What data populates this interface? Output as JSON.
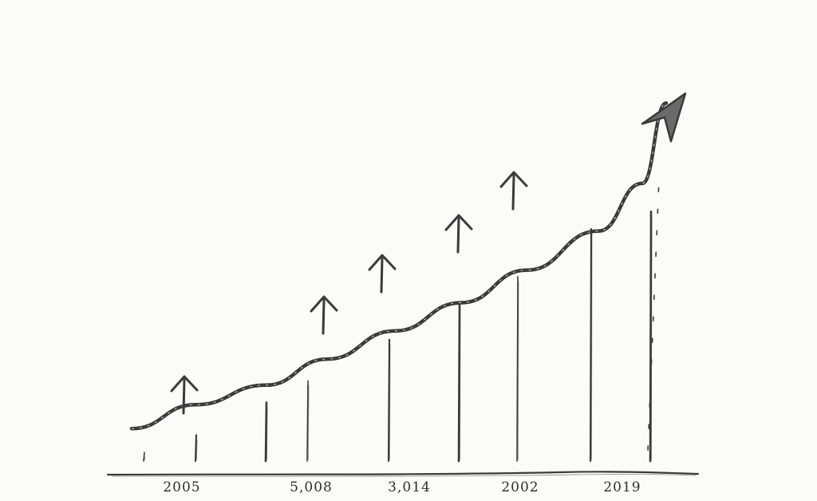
{
  "chart_data": {
    "type": "line",
    "title": "",
    "xlabel": "",
    "ylabel": "",
    "tick_labels": [
      "2005",
      "5,008",
      "3,014",
      "2002",
      "2019"
    ],
    "x": [
      0,
      1,
      2,
      3,
      4,
      5,
      6,
      7,
      8,
      9
    ],
    "bar_heights": [
      0.04,
      0.12,
      0.27,
      0.37,
      0.56,
      0.73,
      0.85,
      1.07,
      1.15,
      1.3
    ],
    "trend": [
      [
        0,
        0.15
      ],
      [
        1,
        0.26
      ],
      [
        2,
        0.35
      ],
      [
        3,
        0.47
      ],
      [
        4,
        0.6
      ],
      [
        5,
        0.73
      ],
      [
        6,
        0.88
      ],
      [
        7,
        1.06
      ],
      [
        8,
        1.28
      ],
      [
        9,
        1.65
      ]
    ],
    "up_arrows_at": [
      1,
      3,
      4,
      5,
      6
    ],
    "final_dashed": true,
    "legend": "none",
    "grid": false,
    "colors": {
      "ink": "#3a3a3a",
      "paper": "#fbfbf8"
    }
  }
}
